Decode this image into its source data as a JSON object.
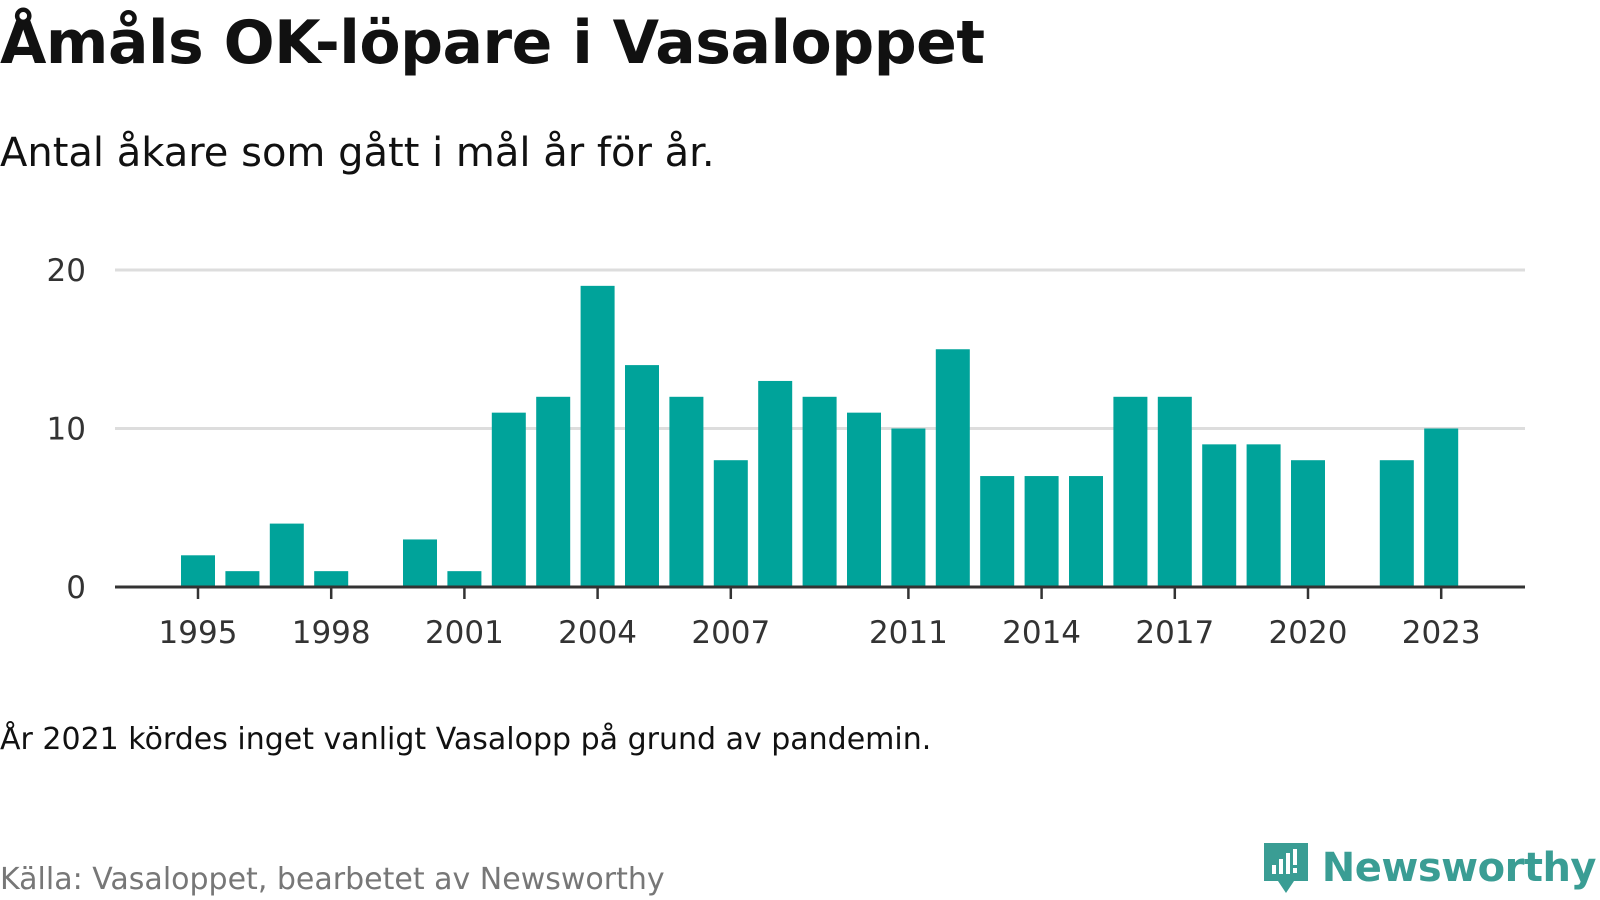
{
  "title": "Åmåls OK-löpare i Vasaloppet",
  "subtitle": "Antal åkare som gått i mål år för år.",
  "note": "År 2021 kördes inget vanligt Vasalopp på grund av pandemin.",
  "source": "Källa: Vasaloppet, bearbetet av Newsworthy",
  "brand": {
    "name": "Newsworthy",
    "icon": "newsworthy-logo-icon",
    "color": "#3a9d94"
  },
  "chart_data": {
    "type": "bar",
    "categories": [
      1995,
      1996,
      1997,
      1998,
      1999,
      2000,
      2001,
      2002,
      2003,
      2004,
      2005,
      2006,
      2007,
      2008,
      2009,
      2010,
      2011,
      2012,
      2013,
      2014,
      2015,
      2016,
      2017,
      2018,
      2019,
      2020,
      2021,
      2022,
      2023
    ],
    "values": [
      2,
      1,
      4,
      1,
      0,
      3,
      1,
      11,
      12,
      19,
      14,
      12,
      8,
      13,
      12,
      11,
      10,
      15,
      7,
      7,
      7,
      12,
      12,
      9,
      9,
      8,
      0,
      8,
      10
    ],
    "x_tick_labels": [
      "1995",
      "1998",
      "2001",
      "2004",
      "2007",
      "2011",
      "2014",
      "2017",
      "2020",
      "2023"
    ],
    "y_ticks": [
      "0",
      "10",
      "20"
    ],
    "ylim": [
      0,
      20
    ],
    "xlabel": "",
    "ylabel": "",
    "grid": true,
    "bar_color": "#00a39a"
  }
}
